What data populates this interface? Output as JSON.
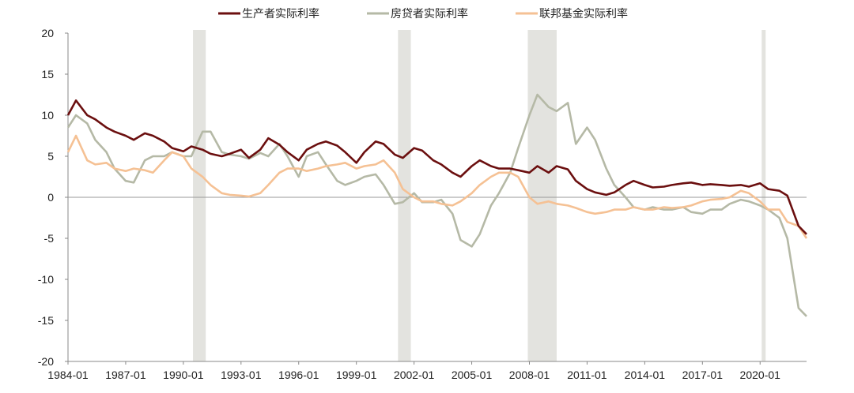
{
  "chart_data": {
    "type": "line",
    "title": "",
    "xlabel": "",
    "ylabel": "",
    "ylim": [
      -20,
      20
    ],
    "yticks": [
      -20,
      -15,
      -10,
      -5,
      0,
      5,
      10,
      15,
      20
    ],
    "xlim": [
      "1984-01",
      "2022-06"
    ],
    "xticks": [
      "1984-01",
      "1987-01",
      "1990-01",
      "1993-01",
      "1996-01",
      "1999-01",
      "2002-01",
      "2005-01",
      "2008-01",
      "2011-01",
      "2014-01",
      "2017-01",
      "2020-01"
    ],
    "grid": false,
    "legend_position": "top",
    "recession_shading": [
      {
        "start": "1990-07",
        "end": "1991-03"
      },
      {
        "start": "2001-03",
        "end": "2001-11"
      },
      {
        "start": "2007-12",
        "end": "2009-06"
      },
      {
        "start": "2020-02",
        "end": "2020-04"
      }
    ],
    "series": [
      {
        "name": "生产者实际利率",
        "color": "#6b0f0f",
        "points": [
          [
            "1984-01",
            10
          ],
          [
            "1984-06",
            11.8
          ],
          [
            "1985-01",
            10
          ],
          [
            "1985-06",
            9.5
          ],
          [
            "1986-01",
            8.5
          ],
          [
            "1986-06",
            8
          ],
          [
            "1987-01",
            7.5
          ],
          [
            "1987-06",
            7
          ],
          [
            "1988-01",
            7.8
          ],
          [
            "1988-06",
            7.5
          ],
          [
            "1989-01",
            6.8
          ],
          [
            "1989-06",
            6
          ],
          [
            "1990-01",
            5.6
          ],
          [
            "1990-06",
            6.2
          ],
          [
            "1991-01",
            5.8
          ],
          [
            "1991-06",
            5.3
          ],
          [
            "1992-01",
            5
          ],
          [
            "1992-06",
            5.3
          ],
          [
            "1993-01",
            5.8
          ],
          [
            "1993-06",
            4.8
          ],
          [
            "1994-01",
            5.8
          ],
          [
            "1994-06",
            7.2
          ],
          [
            "1995-01",
            6.4
          ],
          [
            "1995-06",
            5.5
          ],
          [
            "1996-01",
            4.5
          ],
          [
            "1996-06",
            5.8
          ],
          [
            "1997-01",
            6.5
          ],
          [
            "1997-06",
            6.8
          ],
          [
            "1998-01",
            6.3
          ],
          [
            "1998-06",
            5.5
          ],
          [
            "1999-01",
            4.2
          ],
          [
            "1999-06",
            5.5
          ],
          [
            "2000-01",
            6.8
          ],
          [
            "2000-06",
            6.5
          ],
          [
            "2001-01",
            5.2
          ],
          [
            "2001-06",
            4.8
          ],
          [
            "2002-01",
            6
          ],
          [
            "2002-06",
            5.7
          ],
          [
            "2003-01",
            4.5
          ],
          [
            "2003-06",
            4
          ],
          [
            "2004-01",
            3
          ],
          [
            "2004-06",
            2.5
          ],
          [
            "2005-01",
            3.8
          ],
          [
            "2005-06",
            4.5
          ],
          [
            "2006-01",
            3.8
          ],
          [
            "2006-06",
            3.5
          ],
          [
            "2007-01",
            3.5
          ],
          [
            "2007-06",
            3.3
          ],
          [
            "2008-01",
            3
          ],
          [
            "2008-06",
            3.8
          ],
          [
            "2009-01",
            3
          ],
          [
            "2009-06",
            3.8
          ],
          [
            "2010-01",
            3.4
          ],
          [
            "2010-06",
            2
          ],
          [
            "2011-01",
            1
          ],
          [
            "2011-06",
            0.6
          ],
          [
            "2012-01",
            0.3
          ],
          [
            "2012-06",
            0.6
          ],
          [
            "2013-01",
            1.5
          ],
          [
            "2013-06",
            2
          ],
          [
            "2014-01",
            1.5
          ],
          [
            "2014-06",
            1.2
          ],
          [
            "2015-01",
            1.3
          ],
          [
            "2015-06",
            1.5
          ],
          [
            "2016-01",
            1.7
          ],
          [
            "2016-06",
            1.8
          ],
          [
            "2017-01",
            1.5
          ],
          [
            "2017-06",
            1.6
          ],
          [
            "2018-01",
            1.5
          ],
          [
            "2018-06",
            1.4
          ],
          [
            "2019-01",
            1.5
          ],
          [
            "2019-06",
            1.3
          ],
          [
            "2020-01",
            1.7
          ],
          [
            "2020-06",
            1
          ],
          [
            "2021-01",
            0.8
          ],
          [
            "2021-06",
            0.2
          ],
          [
            "2022-01",
            -3.5
          ],
          [
            "2022-06",
            -4.5
          ]
        ]
      },
      {
        "name": "房贷者实际利率",
        "color": "#b5b9a6",
        "points": [
          [
            "1984-01",
            8.5
          ],
          [
            "1984-06",
            10
          ],
          [
            "1985-01",
            9
          ],
          [
            "1985-06",
            7
          ],
          [
            "1986-01",
            5.5
          ],
          [
            "1986-06",
            3.5
          ],
          [
            "1987-01",
            2
          ],
          [
            "1987-06",
            1.8
          ],
          [
            "1988-01",
            4.5
          ],
          [
            "1988-06",
            5
          ],
          [
            "1989-01",
            5
          ],
          [
            "1989-06",
            5.5
          ],
          [
            "1990-01",
            5
          ],
          [
            "1990-06",
            5
          ],
          [
            "1991-01",
            8
          ],
          [
            "1991-06",
            8
          ],
          [
            "1992-01",
            5.5
          ],
          [
            "1992-06",
            5.2
          ],
          [
            "1993-01",
            5
          ],
          [
            "1993-06",
            4.7
          ],
          [
            "1994-01",
            5.4
          ],
          [
            "1994-06",
            5
          ],
          [
            "1995-01",
            6.5
          ],
          [
            "1995-06",
            5
          ],
          [
            "1996-01",
            2.5
          ],
          [
            "1996-06",
            5
          ],
          [
            "1997-01",
            5.5
          ],
          [
            "1997-06",
            4
          ],
          [
            "1998-01",
            2
          ],
          [
            "1998-06",
            1.5
          ],
          [
            "1999-01",
            2
          ],
          [
            "1999-06",
            2.5
          ],
          [
            "2000-01",
            2.8
          ],
          [
            "2000-06",
            1.5
          ],
          [
            "2001-01",
            -0.8
          ],
          [
            "2001-06",
            -0.6
          ],
          [
            "2002-01",
            0.5
          ],
          [
            "2002-06",
            -0.6
          ],
          [
            "2003-01",
            -0.6
          ],
          [
            "2003-06",
            -0.3
          ],
          [
            "2004-01",
            -2
          ],
          [
            "2004-06",
            -5.2
          ],
          [
            "2005-01",
            -6
          ],
          [
            "2005-06",
            -4.5
          ],
          [
            "2006-01",
            -1
          ],
          [
            "2006-06",
            0.5
          ],
          [
            "2007-01",
            3
          ],
          [
            "2007-06",
            6
          ],
          [
            "2008-01",
            10
          ],
          [
            "2008-06",
            12.5
          ],
          [
            "2009-01",
            11
          ],
          [
            "2009-06",
            10.5
          ],
          [
            "2010-01",
            11.5
          ],
          [
            "2010-06",
            6.5
          ],
          [
            "2011-01",
            8.5
          ],
          [
            "2011-06",
            7
          ],
          [
            "2012-01",
            3.5
          ],
          [
            "2012-06",
            1.5
          ],
          [
            "2013-01",
            0
          ],
          [
            "2013-06",
            -1.2
          ],
          [
            "2014-01",
            -1.5
          ],
          [
            "2014-06",
            -1.2
          ],
          [
            "2015-01",
            -1.5
          ],
          [
            "2015-06",
            -1.5
          ],
          [
            "2016-01",
            -1.2
          ],
          [
            "2016-06",
            -1.8
          ],
          [
            "2017-01",
            -2
          ],
          [
            "2017-06",
            -1.5
          ],
          [
            "2018-01",
            -1.5
          ],
          [
            "2018-06",
            -0.8
          ],
          [
            "2019-01",
            -0.3
          ],
          [
            "2019-06",
            -0.5
          ],
          [
            "2020-01",
            -1
          ],
          [
            "2020-06",
            -1.5
          ],
          [
            "2021-01",
            -2.5
          ],
          [
            "2021-06",
            -5
          ],
          [
            "2022-01",
            -13.5
          ],
          [
            "2022-06",
            -14.5
          ]
        ]
      },
      {
        "name": "联邦基金实际利率",
        "color": "#f5c194",
        "points": [
          [
            "1984-01",
            5.5
          ],
          [
            "1984-06",
            7.5
          ],
          [
            "1985-01",
            4.5
          ],
          [
            "1985-06",
            4
          ],
          [
            "1986-01",
            4.2
          ],
          [
            "1986-06",
            3.5
          ],
          [
            "1987-01",
            3.2
          ],
          [
            "1987-06",
            3.5
          ],
          [
            "1988-01",
            3.3
          ],
          [
            "1988-06",
            3
          ],
          [
            "1989-01",
            4.5
          ],
          [
            "1989-06",
            5.5
          ],
          [
            "1990-01",
            5
          ],
          [
            "1990-06",
            3.5
          ],
          [
            "1991-01",
            2.5
          ],
          [
            "1991-06",
            1.5
          ],
          [
            "1992-01",
            0.5
          ],
          [
            "1992-06",
            0.3
          ],
          [
            "1993-01",
            0.2
          ],
          [
            "1993-06",
            0.1
          ],
          [
            "1994-01",
            0.5
          ],
          [
            "1994-06",
            1.5
          ],
          [
            "1995-01",
            3
          ],
          [
            "1995-06",
            3.5
          ],
          [
            "1996-01",
            3.5
          ],
          [
            "1996-06",
            3.2
          ],
          [
            "1997-01",
            3.5
          ],
          [
            "1997-06",
            3.8
          ],
          [
            "1998-01",
            4
          ],
          [
            "1998-06",
            4.2
          ],
          [
            "1999-01",
            3.5
          ],
          [
            "1999-06",
            3.8
          ],
          [
            "2000-01",
            4
          ],
          [
            "2000-06",
            4.5
          ],
          [
            "2001-01",
            3
          ],
          [
            "2001-06",
            1
          ],
          [
            "2002-01",
            0
          ],
          [
            "2002-06",
            -0.5
          ],
          [
            "2003-01",
            -0.5
          ],
          [
            "2003-06",
            -0.8
          ],
          [
            "2004-01",
            -1
          ],
          [
            "2004-06",
            -0.5
          ],
          [
            "2005-01",
            0.5
          ],
          [
            "2005-06",
            1.5
          ],
          [
            "2006-01",
            2.5
          ],
          [
            "2006-06",
            3
          ],
          [
            "2007-01",
            3
          ],
          [
            "2007-06",
            2.5
          ],
          [
            "2008-01",
            0
          ],
          [
            "2008-06",
            -0.8
          ],
          [
            "2009-01",
            -0.5
          ],
          [
            "2009-06",
            -0.8
          ],
          [
            "2010-01",
            -1
          ],
          [
            "2010-06",
            -1.3
          ],
          [
            "2011-01",
            -1.8
          ],
          [
            "2011-06",
            -2
          ],
          [
            "2012-01",
            -1.8
          ],
          [
            "2012-06",
            -1.5
          ],
          [
            "2013-01",
            -1.5
          ],
          [
            "2013-06",
            -1.2
          ],
          [
            "2014-01",
            -1.5
          ],
          [
            "2014-06",
            -1.5
          ],
          [
            "2015-01",
            -1.2
          ],
          [
            "2015-06",
            -1.3
          ],
          [
            "2016-01",
            -1.2
          ],
          [
            "2016-06",
            -1
          ],
          [
            "2017-01",
            -0.5
          ],
          [
            "2017-06",
            -0.3
          ],
          [
            "2018-01",
            -0.2
          ],
          [
            "2018-06",
            0
          ],
          [
            "2019-01",
            0.8
          ],
          [
            "2019-06",
            0.5
          ],
          [
            "2020-01",
            -0.5
          ],
          [
            "2020-06",
            -1.5
          ],
          [
            "2021-01",
            -1.5
          ],
          [
            "2021-06",
            -3
          ],
          [
            "2022-01",
            -3.5
          ],
          [
            "2022-06",
            -5
          ]
        ]
      }
    ]
  }
}
